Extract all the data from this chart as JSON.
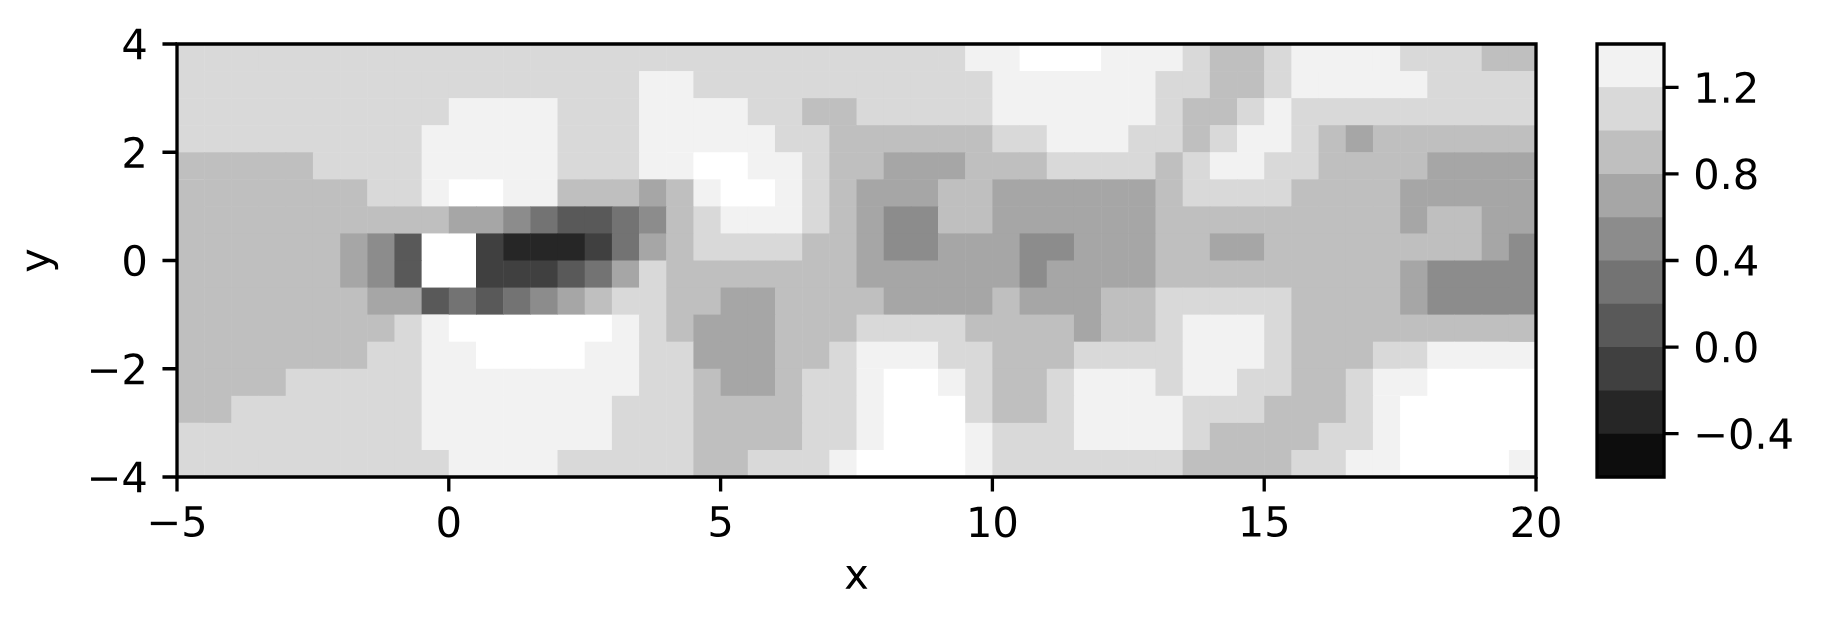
{
  "chart_data": {
    "type": "heatmap",
    "xlabel": "x",
    "ylabel": "y",
    "x": [
      -4.75,
      -4.25,
      -3.75,
      -3.25,
      -2.75,
      -2.25,
      -1.75,
      -1.25,
      -0.75,
      -0.25,
      0.25,
      0.75,
      1.25,
      1.75,
      2.25,
      2.75,
      3.25,
      3.75,
      4.25,
      4.75,
      5.25,
      5.75,
      6.25,
      6.75,
      7.25,
      7.75,
      8.25,
      8.75,
      9.25,
      9.75,
      10.25,
      10.75,
      11.25,
      11.75,
      12.25,
      12.75,
      13.25,
      13.75,
      14.25,
      14.75,
      15.25,
      15.75,
      16.25,
      16.75,
      17.25,
      17.75,
      18.25,
      18.75,
      19.25,
      19.75
    ],
    "y": [
      3.75,
      3.25,
      2.75,
      2.25,
      1.75,
      1.25,
      0.75,
      0.25,
      -0.25,
      -0.75,
      -1.25,
      -1.75,
      -2.25,
      -2.75,
      -3.25,
      -3.75
    ],
    "xlim": [
      -5,
      20
    ],
    "ylim": [
      -4,
      4
    ],
    "xticks": [
      {
        "value": -5,
        "label": "−5"
      },
      0,
      5,
      10,
      15,
      20
    ],
    "yticks": [
      {
        "value": -4,
        "label": "−4"
      },
      {
        "value": -2,
        "label": "−2"
      },
      0,
      2,
      4
    ],
    "clim": [
      -0.6,
      1.4
    ],
    "cticks": [
      {
        "value": -0.4,
        "label": "−0.4"
      },
      {
        "value": 0,
        "label": "0.0"
      },
      0.4,
      0.8,
      1.2
    ],
    "cells": [
      [
        1.1,
        1.1,
        1.1,
        1.1,
        1.1,
        1.1,
        1.1,
        1.1,
        1.1,
        1.1,
        1.1,
        1.1,
        1.1,
        1.1,
        1.1,
        1.1,
        1.1,
        1.1,
        1.1,
        1.1,
        1.1,
        1.1,
        1.1,
        1.1,
        1.1,
        1.1,
        1.1,
        1.1,
        1.1,
        1.3,
        1.3,
        null,
        null,
        null,
        1.3,
        1.3,
        1.3,
        1.1,
        0.9,
        0.9,
        1.1,
        1.3,
        1.3,
        1.3,
        1.3,
        1.1,
        1.1,
        1.1,
        0.9,
        0.9
      ],
      [
        1.1,
        1.1,
        1.1,
        1.1,
        1.1,
        1.1,
        1.1,
        1.1,
        1.1,
        1.1,
        1.1,
        1.1,
        1.1,
        1.1,
        1.1,
        1.1,
        1.1,
        1.3,
        1.3,
        1.1,
        1.1,
        1.1,
        1.1,
        1.1,
        1.1,
        1.1,
        1.1,
        1.1,
        1.1,
        1.1,
        1.3,
        1.3,
        1.3,
        1.3,
        1.3,
        1.3,
        1.1,
        1.1,
        0.9,
        0.9,
        1.1,
        1.3,
        1.3,
        1.3,
        1.3,
        1.3,
        1.1,
        1.1,
        1.1,
        1.1
      ],
      [
        1.1,
        1.1,
        1.1,
        1.1,
        1.1,
        1.1,
        1.1,
        1.1,
        1.1,
        1.1,
        1.3,
        1.3,
        1.3,
        1.3,
        1.1,
        1.1,
        1.1,
        1.3,
        1.3,
        1.3,
        1.3,
        1.1,
        1.1,
        0.9,
        0.9,
        1.1,
        1.1,
        1.1,
        1.1,
        1.1,
        1.3,
        1.3,
        1.3,
        1.3,
        1.3,
        1.3,
        1.1,
        0.9,
        0.9,
        1.1,
        1.3,
        1.1,
        1.1,
        1.1,
        1.1,
        1.1,
        1.1,
        1.1,
        1.1,
        1.1
      ],
      [
        1.1,
        1.1,
        1.1,
        1.1,
        1.1,
        1.1,
        1.1,
        1.1,
        1.1,
        1.3,
        1.3,
        1.3,
        1.3,
        1.3,
        1.1,
        1.1,
        1.1,
        1.3,
        1.3,
        1.3,
        1.3,
        1.3,
        1.1,
        1.1,
        0.9,
        0.9,
        0.9,
        0.9,
        0.9,
        0.9,
        1.1,
        1.1,
        1.3,
        1.3,
        1.3,
        1.1,
        1.1,
        0.9,
        1.1,
        1.3,
        1.3,
        1.1,
        0.9,
        0.7,
        0.9,
        0.9,
        0.9,
        0.9,
        0.9,
        0.9
      ],
      [
        0.9,
        0.9,
        0.9,
        0.9,
        0.9,
        1.1,
        1.1,
        1.1,
        1.1,
        1.3,
        1.3,
        1.3,
        1.3,
        1.3,
        1.1,
        1.1,
        1.1,
        1.3,
        1.3,
        null,
        null,
        1.3,
        1.3,
        1.1,
        0.9,
        0.9,
        0.7,
        0.7,
        0.7,
        0.9,
        0.9,
        0.9,
        1.1,
        1.1,
        1.1,
        1.1,
        0.9,
        1.1,
        1.3,
        1.3,
        1.1,
        1.1,
        0.9,
        0.9,
        0.9,
        0.9,
        0.7,
        0.7,
        0.7,
        0.7
      ],
      [
        0.9,
        0.9,
        0.9,
        0.9,
        0.9,
        0.9,
        0.9,
        1.1,
        1.1,
        1.3,
        null,
        null,
        1.3,
        1.3,
        0.9,
        0.9,
        0.9,
        0.7,
        0.9,
        1.3,
        null,
        null,
        1.3,
        1.1,
        0.9,
        0.7,
        0.7,
        0.7,
        0.9,
        0.9,
        0.7,
        0.7,
        0.7,
        0.7,
        0.7,
        0.7,
        0.9,
        1.1,
        1.1,
        1.1,
        1.1,
        0.9,
        0.9,
        0.9,
        0.9,
        0.7,
        0.7,
        0.7,
        0.7,
        0.7
      ],
      [
        0.9,
        0.9,
        0.9,
        0.9,
        0.9,
        0.9,
        0.9,
        0.9,
        0.9,
        0.9,
        0.7,
        0.7,
        0.5,
        0.3,
        0.1,
        0.1,
        0.3,
        0.5,
        0.9,
        1.1,
        1.3,
        1.3,
        1.3,
        1.1,
        0.9,
        0.7,
        0.5,
        0.5,
        0.9,
        0.9,
        0.7,
        0.7,
        0.7,
        0.7,
        0.7,
        0.7,
        0.9,
        0.9,
        0.9,
        0.9,
        0.9,
        0.9,
        0.9,
        0.9,
        0.9,
        0.7,
        0.9,
        0.9,
        0.7,
        0.7
      ],
      [
        0.9,
        0.9,
        0.9,
        0.9,
        0.9,
        0.9,
        0.7,
        0.5,
        0.1,
        null,
        null,
        -0.1,
        -0.3,
        -0.3,
        -0.3,
        -0.1,
        0.3,
        0.7,
        0.9,
        1.1,
        1.1,
        1.1,
        1.1,
        0.9,
        0.9,
        0.7,
        0.5,
        0.5,
        0.7,
        0.7,
        0.7,
        0.5,
        0.5,
        0.7,
        0.7,
        0.7,
        0.9,
        0.9,
        0.7,
        0.7,
        0.9,
        0.9,
        0.9,
        0.9,
        0.9,
        0.9,
        0.9,
        0.9,
        0.7,
        0.5
      ],
      [
        0.9,
        0.9,
        0.9,
        0.9,
        0.9,
        0.9,
        0.7,
        0.5,
        0.1,
        null,
        null,
        -0.1,
        -0.1,
        -0.1,
        0.1,
        0.3,
        0.7,
        1.1,
        0.9,
        0.9,
        0.9,
        0.9,
        0.9,
        0.9,
        0.9,
        0.7,
        0.7,
        0.7,
        0.7,
        0.7,
        0.7,
        0.5,
        0.7,
        0.7,
        0.7,
        0.7,
        0.9,
        0.9,
        0.9,
        0.9,
        0.9,
        0.9,
        0.9,
        0.9,
        0.9,
        0.7,
        0.5,
        0.5,
        0.5,
        0.5
      ],
      [
        0.9,
        0.9,
        0.9,
        0.9,
        0.9,
        0.9,
        0.9,
        0.7,
        0.7,
        0.1,
        0.3,
        0.1,
        0.3,
        0.5,
        0.7,
        0.9,
        1.1,
        1.1,
        0.9,
        0.9,
        0.7,
        0.7,
        0.9,
        0.9,
        0.9,
        0.9,
        0.7,
        0.7,
        0.7,
        0.7,
        0.9,
        0.7,
        0.7,
        0.7,
        0.9,
        0.9,
        1.1,
        1.1,
        1.1,
        1.1,
        1.1,
        0.9,
        0.9,
        0.9,
        0.9,
        0.7,
        0.5,
        0.5,
        0.5,
        0.5
      ],
      [
        0.9,
        0.9,
        0.9,
        0.9,
        0.9,
        0.9,
        0.9,
        0.9,
        1.1,
        1.3,
        null,
        null,
        null,
        null,
        null,
        null,
        1.3,
        1.1,
        0.9,
        0.7,
        0.7,
        0.7,
        0.9,
        0.9,
        0.9,
        1.1,
        1.1,
        1.1,
        1.1,
        0.9,
        0.9,
        0.9,
        0.9,
        0.7,
        0.9,
        0.9,
        1.1,
        1.3,
        1.3,
        1.3,
        1.1,
        0.9,
        0.9,
        0.9,
        0.9,
        0.9,
        0.9,
        0.9,
        0.9,
        0.9
      ],
      [
        0.9,
        0.9,
        0.9,
        0.9,
        0.9,
        0.9,
        0.9,
        1.1,
        1.1,
        1.3,
        1.3,
        null,
        null,
        null,
        null,
        1.3,
        1.3,
        1.1,
        1.1,
        0.7,
        0.7,
        0.7,
        0.9,
        0.9,
        1.1,
        1.3,
        1.3,
        1.3,
        1.1,
        1.1,
        0.9,
        0.9,
        0.9,
        1.1,
        1.1,
        1.1,
        1.1,
        1.3,
        1.3,
        1.3,
        1.1,
        0.9,
        0.9,
        0.9,
        1.1,
        1.1,
        1.3,
        1.3,
        1.3,
        1.3
      ],
      [
        0.9,
        0.9,
        0.9,
        0.9,
        1.1,
        1.1,
        1.1,
        1.1,
        1.1,
        1.3,
        1.3,
        1.3,
        1.3,
        1.3,
        1.3,
        1.3,
        1.3,
        1.1,
        1.1,
        0.9,
        0.7,
        0.7,
        0.9,
        1.1,
        1.1,
        1.3,
        null,
        null,
        1.3,
        1.1,
        0.9,
        0.9,
        1.1,
        1.3,
        1.3,
        1.3,
        1.1,
        1.3,
        1.3,
        1.1,
        1.1,
        0.9,
        0.9,
        1.1,
        1.3,
        1.3,
        null,
        null,
        null,
        null
      ],
      [
        0.9,
        0.9,
        1.1,
        1.1,
        1.1,
        1.1,
        1.1,
        1.1,
        1.1,
        1.3,
        1.3,
        1.3,
        1.3,
        1.3,
        1.3,
        1.3,
        1.1,
        1.1,
        1.1,
        0.9,
        0.9,
        0.9,
        0.9,
        1.1,
        1.1,
        1.3,
        null,
        null,
        null,
        1.1,
        0.9,
        0.9,
        1.1,
        1.3,
        1.3,
        1.3,
        1.3,
        1.1,
        1.1,
        1.1,
        0.9,
        0.9,
        0.9,
        1.1,
        1.3,
        null,
        null,
        null,
        null,
        null
      ],
      [
        1.1,
        1.1,
        1.1,
        1.1,
        1.1,
        1.1,
        1.1,
        1.1,
        1.1,
        1.3,
        1.3,
        1.3,
        1.3,
        1.3,
        1.3,
        1.3,
        1.1,
        1.1,
        1.1,
        0.9,
        0.9,
        0.9,
        0.9,
        1.1,
        1.1,
        1.3,
        null,
        null,
        null,
        1.3,
        1.1,
        1.1,
        1.1,
        1.3,
        1.3,
        1.3,
        1.3,
        1.1,
        0.9,
        0.9,
        0.9,
        0.9,
        1.1,
        1.1,
        1.3,
        null,
        null,
        null,
        null,
        null
      ],
      [
        1.1,
        1.1,
        1.1,
        1.1,
        1.1,
        1.1,
        1.1,
        1.1,
        1.1,
        1.1,
        1.3,
        1.3,
        1.3,
        1.3,
        1.1,
        1.1,
        1.1,
        1.1,
        1.1,
        0.9,
        0.9,
        1.1,
        1.1,
        1.1,
        1.3,
        null,
        null,
        null,
        null,
        1.3,
        1.1,
        1.1,
        1.1,
        1.1,
        1.1,
        1.1,
        1.1,
        0.9,
        0.9,
        0.9,
        0.9,
        1.1,
        1.1,
        1.3,
        1.3,
        null,
        null,
        null,
        null,
        1.3
      ]
    ]
  }
}
